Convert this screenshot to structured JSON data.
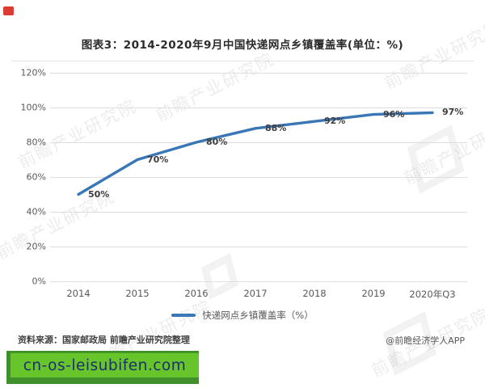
{
  "title": "图表3：2014-2020年9月中国快递网点乡镇覆盖率(单位：%)",
  "chart_data": {
    "type": "line",
    "categories": [
      "2014",
      "2015",
      "2016",
      "2017",
      "2018",
      "2019",
      "2020年Q3"
    ],
    "values": [
      50,
      70,
      80,
      88,
      92,
      96,
      97
    ],
    "point_labels": [
      "50%",
      "70%",
      "80%",
      "88%",
      "92%",
      "96%",
      "97%"
    ],
    "title": "图表3：2014-2020年9月中国快递网点乡镇覆盖率(单位：%)",
    "xlabel": "",
    "ylabel": "",
    "ylim": [
      0,
      120
    ],
    "ytick_step": 20,
    "yticks": [
      "0%",
      "20%",
      "40%",
      "60%",
      "80%",
      "100%",
      "120%"
    ],
    "grid": true,
    "legend": [
      "快递网点乡镇覆盖率（%）"
    ],
    "legend_position": "bottom",
    "line_color": "#3a77b7"
  },
  "footer": {
    "source": "资料来源：国家邮政局 前瞻产业研究院整理",
    "credit": "@前瞻经济学人APP"
  },
  "banner": {
    "text": "cn-os-leisubifen.com",
    "bg_color": "#67c52b",
    "shadow_color": "#3f8f2a",
    "text_color": "#1c2e6e"
  },
  "watermark": {
    "text": "前瞻产业研究院"
  },
  "colors": {
    "line": "#3a77b7",
    "gridline": "#dedede",
    "red_badge": "#dd3b32"
  }
}
